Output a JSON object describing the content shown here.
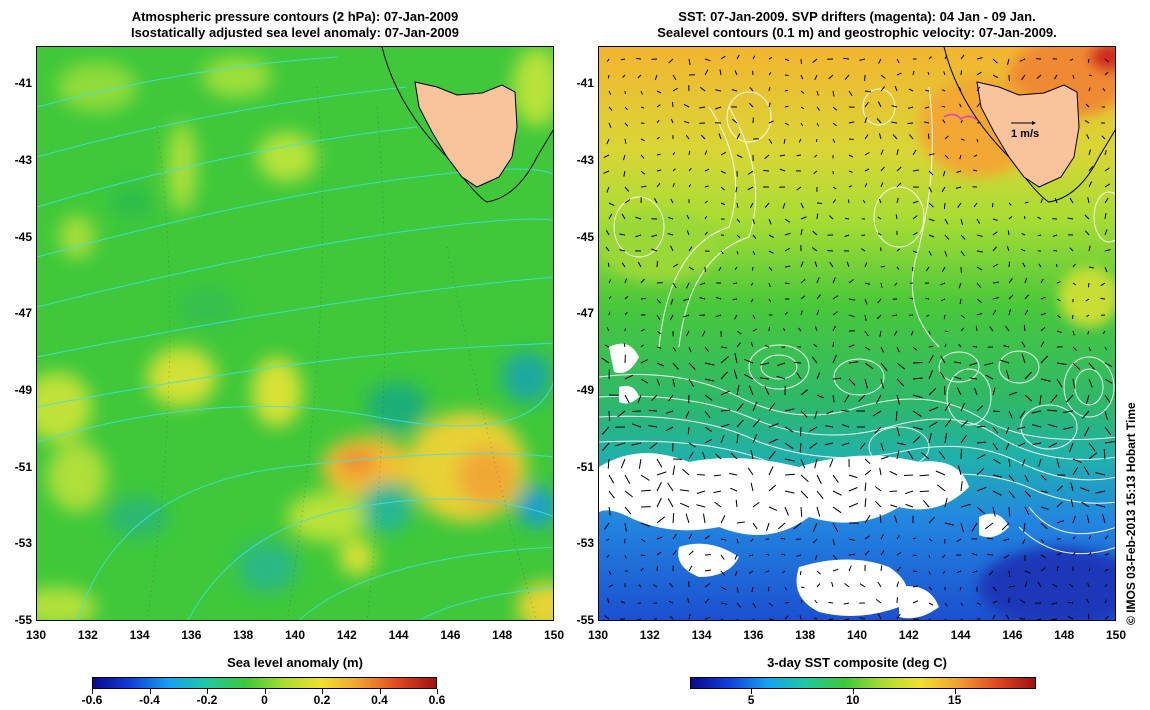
{
  "left_panel": {
    "title_line1": "Atmospheric pressure contours (2 hPa): 07-Jan-2009",
    "title_line2": "Isostatically adjusted sea level anomaly: 07-Jan-2009",
    "colorbar_title": "Sea level anomaly (m)",
    "colorbar_ticks": [
      "-0.6",
      "-0.4",
      "-0.2",
      "0",
      "0.2",
      "0.4",
      "0.6"
    ],
    "colorbar_range": [
      -0.6,
      0.6
    ]
  },
  "right_panel": {
    "title_line1": "SST: 07-Jan-2009. SVP drifters (magenta): 04 Jan - 09 Jan.",
    "title_line2": "Sealevel contours (0.1 m) and geostrophic velocity: 07-Jan-2009.",
    "colorbar_title": "3-day SST composite (deg C)",
    "colorbar_ticks": [
      "5",
      "10",
      "15"
    ],
    "colorbar_tick_values": [
      5,
      10,
      15
    ],
    "colorbar_range": [
      2,
      19
    ],
    "velocity_scale_label": "1 m/s"
  },
  "axes": {
    "lat_labels": [
      "-41",
      "-43",
      "-45",
      "-47",
      "-49",
      "-51",
      "-53",
      "-55"
    ],
    "lon_labels": [
      "130",
      "132",
      "134",
      "136",
      "138",
      "140",
      "142",
      "144",
      "146",
      "148",
      "150"
    ],
    "lat_range": [
      -55,
      -40
    ],
    "lon_range": [
      130,
      150
    ]
  },
  "credit": "© IMOS 03-Feb-2013 15:13 Hobart Time",
  "colors": {
    "land": "#f9c39b",
    "sla_background": "#3cc83a",
    "sla_contour": "#40e0e8",
    "sst_contour": "#ffffff"
  }
}
